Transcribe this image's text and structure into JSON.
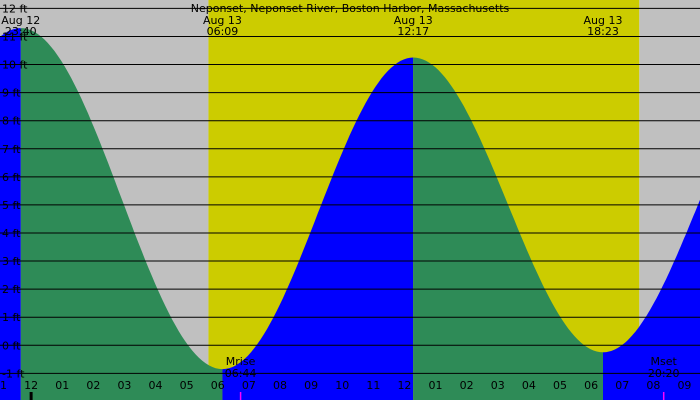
{
  "chart_data": {
    "type": "area",
    "title": "Neponset, Neponset River, Boston Harbor, Massachusetts",
    "xlabel": "",
    "ylabel": "",
    "x_unit": "hours from 2024-08-13 00:00 (clock time)",
    "xlim": [
      -1.0,
      21.5
    ],
    "ylim": [
      -1.95,
      12.3
    ],
    "grid": true,
    "y_ticks": [
      {
        "value": 12,
        "label": "12 ft"
      },
      {
        "value": 11,
        "label": "11 ft"
      },
      {
        "value": 10,
        "label": "10 ft"
      },
      {
        "value": 9,
        "label": "9 ft"
      },
      {
        "value": 8,
        "label": "8 ft"
      },
      {
        "value": 7,
        "label": "7 ft"
      },
      {
        "value": 6,
        "label": "6 ft"
      },
      {
        "value": 5,
        "label": "5 ft"
      },
      {
        "value": 4,
        "label": "4 ft"
      },
      {
        "value": 3,
        "label": "3 ft"
      },
      {
        "value": 2,
        "label": "2 ft"
      },
      {
        "value": 1,
        "label": "1 ft"
      },
      {
        "value": 0,
        "label": "0 ft"
      },
      {
        "value": -1,
        "label": "-1 ft"
      }
    ],
    "x_ticks": [
      {
        "hour": -1,
        "label": "11"
      },
      {
        "hour": 0,
        "label": "12"
      },
      {
        "hour": 1,
        "label": "01"
      },
      {
        "hour": 2,
        "label": "02"
      },
      {
        "hour": 3,
        "label": "03"
      },
      {
        "hour": 4,
        "label": "04"
      },
      {
        "hour": 5,
        "label": "05"
      },
      {
        "hour": 6,
        "label": "06"
      },
      {
        "hour": 7,
        "label": "07"
      },
      {
        "hour": 8,
        "label": "08"
      },
      {
        "hour": 9,
        "label": "09"
      },
      {
        "hour": 10,
        "label": "10"
      },
      {
        "hour": 11,
        "label": "11"
      },
      {
        "hour": 12,
        "label": "12"
      },
      {
        "hour": 13,
        "label": "01"
      },
      {
        "hour": 14,
        "label": "02"
      },
      {
        "hour": 15,
        "label": "03"
      },
      {
        "hour": 16,
        "label": "04"
      },
      {
        "hour": 17,
        "label": "05"
      },
      {
        "hour": 18,
        "label": "06"
      },
      {
        "hour": 19,
        "label": "07"
      },
      {
        "hour": 20,
        "label": "08"
      },
      {
        "hour": 21,
        "label": "09"
      }
    ],
    "tide_extremes": [
      {
        "date": "Aug 12",
        "time": "23:40",
        "hour": -0.333,
        "height_ft": 11.3,
        "kind": "high"
      },
      {
        "date": "Aug 13",
        "time": "06:09",
        "hour": 6.15,
        "height_ft": -0.85,
        "kind": "low"
      },
      {
        "date": "Aug 13",
        "time": "12:17",
        "hour": 12.283,
        "height_ft": 10.25,
        "kind": "high"
      },
      {
        "date": "Aug 13",
        "time": "18:23",
        "hour": 18.383,
        "height_ft": -0.25,
        "kind": "low"
      }
    ],
    "daylight": {
      "start_hour": 5.7,
      "end_hour": 19.55
    },
    "moon_events": [
      {
        "label": "Mrise",
        "time": "06:44",
        "hour": 6.733
      },
      {
        "label": "Mset",
        "time": "20:20",
        "hour": 20.333
      }
    ],
    "colors": {
      "night": "#c0c0c0",
      "day": "#cccc00",
      "falling": "#2e8b57",
      "rising": "#0000ff",
      "gridline": "#000000",
      "moon_tick": "#ff00ff",
      "midnight_tick": "#000000"
    }
  }
}
